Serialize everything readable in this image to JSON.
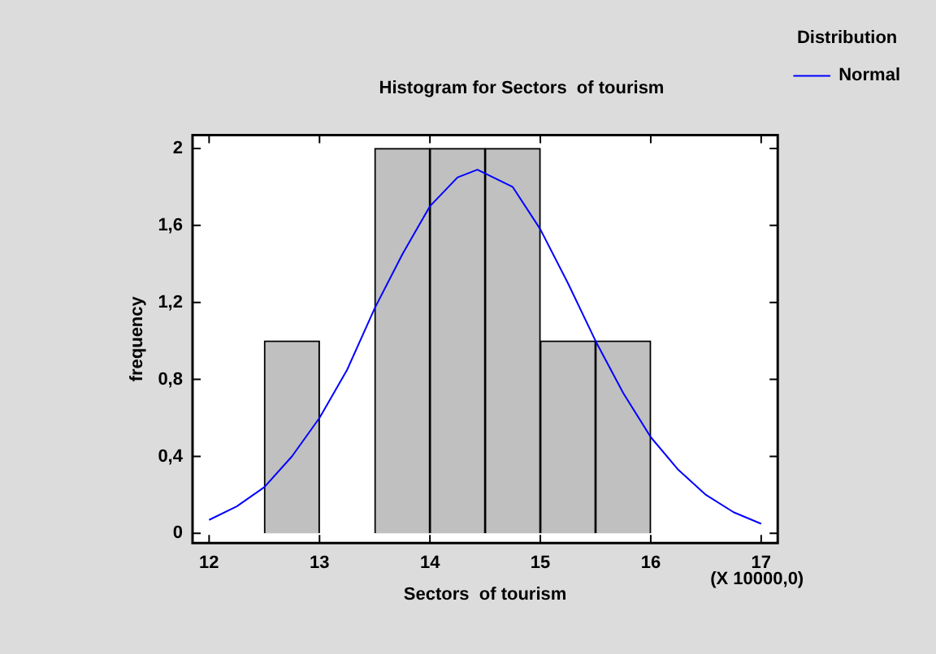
{
  "chart_data": {
    "type": "histogram",
    "title": "Histogram for Sectors  of tourism",
    "xlabel": "Sectors  of tourism",
    "ylabel": "frequency",
    "legend_title": "Distribution",
    "legend": "top right",
    "annotations": [
      "(X 10000,0)"
    ],
    "xlim": [
      11.85,
      17.15
    ],
    "xticks": [
      12,
      13,
      14,
      15,
      16,
      17
    ],
    "ylim": [
      -0.05,
      2.07
    ],
    "yticks": [
      0,
      {
        "value": 0.4,
        "label": "0,4"
      },
      {
        "value": 0.8,
        "label": "0,8"
      },
      {
        "value": 1.2,
        "label": "1,2"
      },
      {
        "value": 1.6,
        "label": "1,6"
      },
      2
    ],
    "grid": false,
    "series": [
      {
        "color": "#c0c0c0",
        "bins": [
          12.5,
          13,
          13.5,
          14,
          14.5,
          15,
          15.5,
          16
        ],
        "values": [
          1,
          0,
          2,
          2,
          2,
          1,
          1
        ]
      },
      {
        "type": "line",
        "name": "Normal",
        "color": "#0000ff",
        "marker": "none",
        "line_style": "solid",
        "x": [
          12,
          12.25,
          12.5,
          12.75,
          13,
          13.25,
          13.5,
          13.75,
          14,
          14.25,
          14.43,
          14.75,
          15,
          15.25,
          15.5,
          15.75,
          16,
          16.25,
          16.5,
          16.75,
          17
        ],
        "values": [
          0.07,
          0.14,
          0.24,
          0.4,
          0.6,
          0.85,
          1.17,
          1.45,
          1.7,
          1.85,
          1.89,
          1.8,
          1.58,
          1.3,
          1.0,
          0.73,
          0.5,
          0.33,
          0.2,
          0.11,
          0.05
        ]
      }
    ]
  }
}
